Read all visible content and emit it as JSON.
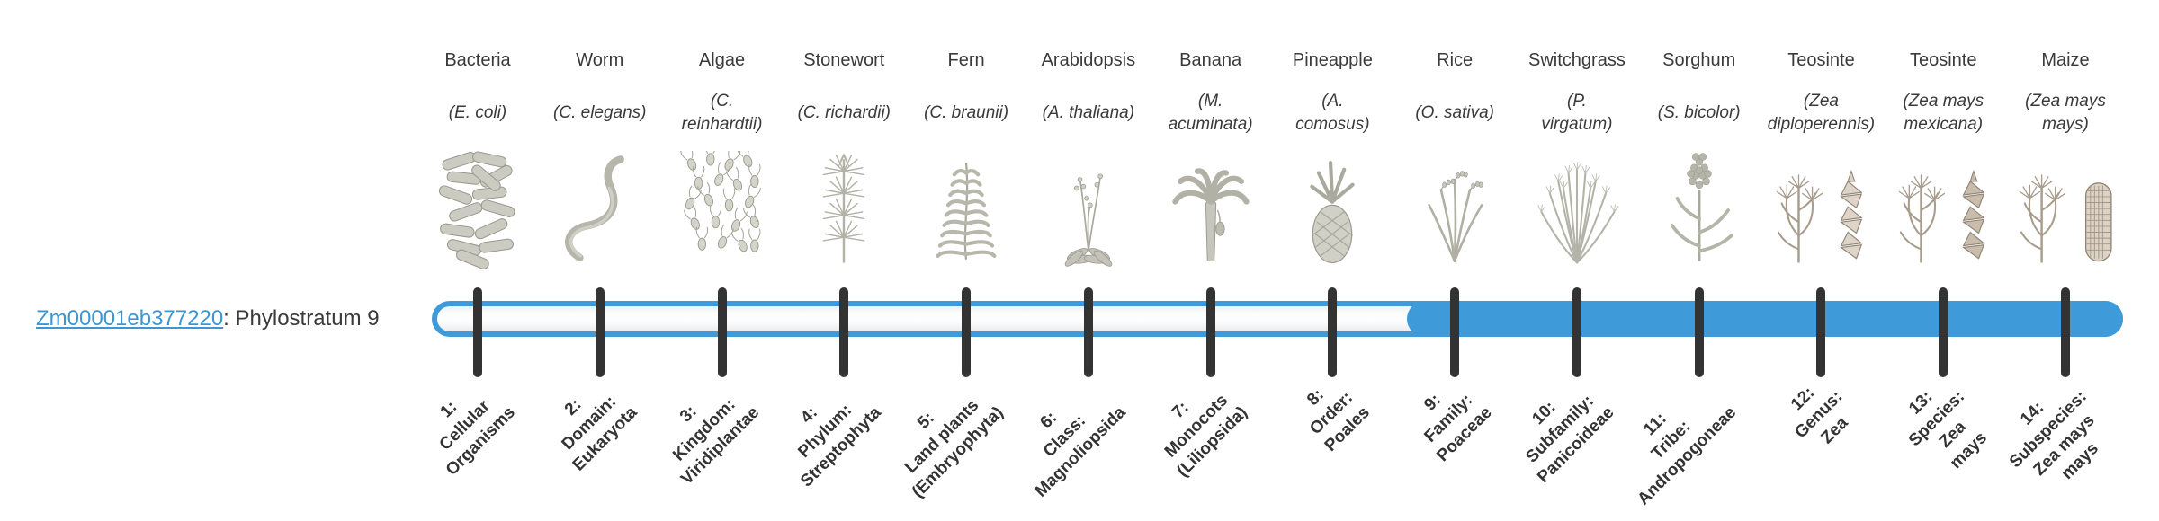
{
  "figure": {
    "title": "Gene phylostratigraphy map",
    "background": "#ffffff"
  },
  "colors": {
    "accent": "#3e9ad8",
    "link": "#3d96d2",
    "tick": "#333333",
    "text": "#3a3a3a",
    "track": "#fbfcfd"
  },
  "gene": {
    "id": "Zm00001eb377220",
    "suffix": ": Phylostratum 9",
    "phylostratum": 9
  },
  "bar": {
    "total_strata": 14,
    "filled_from_stratum": 9,
    "fill_state": "strata 9-14 filled blue, strata 1-8 unfilled track"
  },
  "columns": [
    {
      "name": "Bacteria",
      "sci": "(E. coli)",
      "icon": "bacteria-illustration",
      "stratum": "1:\nCellular\nOrganisms",
      "filled": false
    },
    {
      "name": "Worm",
      "sci": "(C. elegans)",
      "icon": "worm-illustration",
      "stratum": "2:\nDomain:\nEukaryota",
      "filled": false
    },
    {
      "name": "Algae",
      "sci": "(C.\nreinhardtii)",
      "icon": "algae-illustration",
      "stratum": "3:\nKingdom:\nViridiplantae",
      "filled": false
    },
    {
      "name": "Stonewort",
      "sci": "(C. richardii)",
      "icon": "stonewort-illustration",
      "stratum": "4:\nPhylum:\nStreptophyta",
      "filled": false
    },
    {
      "name": "Fern",
      "sci": "(C. braunii)",
      "icon": "fern-illustration",
      "stratum": "5:\nLand plants\n(Embryophyta)",
      "filled": false
    },
    {
      "name": "Arabidopsis",
      "sci": "(A. thaliana)",
      "icon": "arabidopsis-illustration",
      "stratum": "6:\nClass:\nMagnoliopsida",
      "filled": false
    },
    {
      "name": "Banana",
      "sci": "(M.\nacuminata)",
      "icon": "banana-illustration",
      "stratum": "7:\nMonocots\n(Liliopsida)",
      "filled": false
    },
    {
      "name": "Pineapple",
      "sci": "(A.\ncomosus)",
      "icon": "pineapple-illustration",
      "stratum": "8:\nOrder:\nPoales",
      "filled": false
    },
    {
      "name": "Rice",
      "sci": "(O. sativa)",
      "icon": "rice-illustration",
      "stratum": "9:\nFamily:\nPoaceae",
      "filled": true
    },
    {
      "name": "Switchgrass",
      "sci": "(P.\nvirgatum)",
      "icon": "switchgrass-illustration",
      "stratum": "10:\nSubfamily:\nPanicoideae",
      "filled": true
    },
    {
      "name": "Sorghum",
      "sci": "(S. bicolor)",
      "icon": "sorghum-illustration",
      "stratum": "11:\nTribe:\nAndropogoneae",
      "filled": true
    },
    {
      "name": "Teosinte",
      "sci": "(Zea\ndiploperennis)",
      "icon": "teosinte-diploperennis-illustration",
      "stratum": "12:\nGenus:\nZea",
      "filled": true
    },
    {
      "name": "Teosinte",
      "sci": "(Zea mays\nmexicana)",
      "icon": "teosinte-mexicana-illustration",
      "stratum": "13:\nSpecies:\nZea\nmays",
      "filled": true
    },
    {
      "name": "Maize",
      "sci": "(Zea mays\nmays)",
      "icon": "maize-illustration",
      "stratum": "14:\nSubspecies:\nZea mays\nmays",
      "filled": true
    }
  ]
}
